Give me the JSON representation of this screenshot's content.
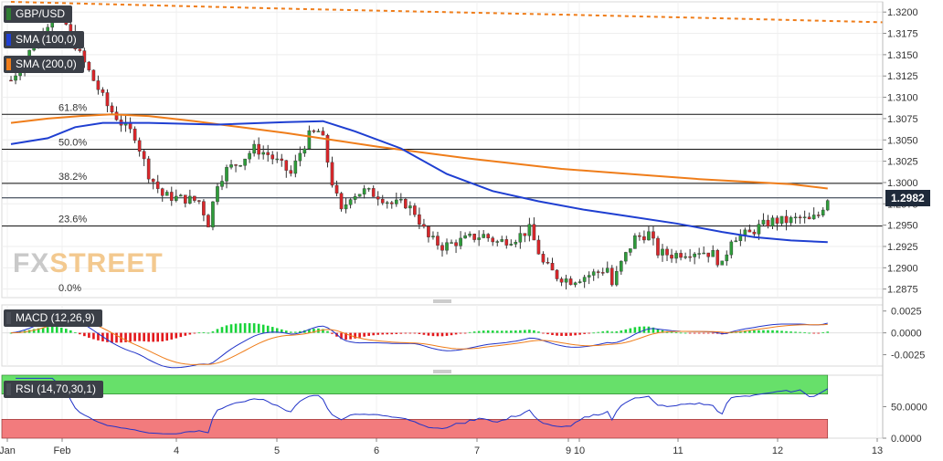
{
  "instrument": "GBP/USD",
  "watermark": {
    "left": "FX",
    "right": "STREET"
  },
  "indicators": {
    "sma100": {
      "label": "SMA (100,0)",
      "color": "#1f3fd1"
    },
    "sma200": {
      "label": "SMA (200,0)",
      "color": "#ef7d1a"
    },
    "macd": {
      "label": "MACD (12,26,9)"
    },
    "rsi": {
      "label": "RSI (14,70,30,1)"
    }
  },
  "last_price": "1.2982",
  "chart_data": [
    {
      "type": "candlestick",
      "name": "price",
      "x_ticks": [
        "Jan",
        "Feb",
        "4",
        "5",
        "6",
        "7",
        "9",
        "10",
        "11",
        "12",
        "13"
      ],
      "y_ticks": [
        "1.3200",
        "1.3175",
        "1.3150",
        "1.3125",
        "1.3100",
        "1.3075",
        "1.3050",
        "1.3025",
        "1.3000",
        "1.2975",
        "1.2950",
        "1.2925",
        "1.2900",
        "1.2875"
      ],
      "ylim": [
        1.2865,
        1.3212
      ],
      "fibonacci": [
        {
          "label": "61.8%",
          "value": 1.308
        },
        {
          "label": "50.0%",
          "value": 1.3039
        },
        {
          "label": "38.2%",
          "value": 1.2999
        },
        {
          "label": "23.6%",
          "value": 1.2949
        },
        {
          "label": "0.0%",
          "value": 1.2868
        }
      ],
      "close_path": [
        [
          0,
          1.312
        ],
        [
          3,
          1.3145
        ],
        [
          6,
          1.317
        ],
        [
          9,
          1.3195
        ],
        [
          12,
          1.3185
        ],
        [
          15,
          1.315
        ],
        [
          18,
          1.312
        ],
        [
          21,
          1.309
        ],
        [
          24,
          1.307
        ],
        [
          27,
          1.3055
        ],
        [
          30,
          1.301
        ],
        [
          33,
          1.2985
        ],
        [
          36,
          1.2982
        ],
        [
          39,
          1.298
        ],
        [
          41,
          1.2978
        ],
        [
          43,
          1.2952
        ],
        [
          45,
          1.3
        ],
        [
          47,
          1.3015
        ],
        [
          50,
          1.3025
        ],
        [
          53,
          1.304
        ],
        [
          56,
          1.3033
        ],
        [
          59,
          1.302
        ],
        [
          61,
          1.301
        ],
        [
          63,
          1.3035
        ],
        [
          65,
          1.3055
        ],
        [
          67,
          1.306
        ],
        [
          68,
          1.305
        ],
        [
          70,
          1.3
        ],
        [
          72,
          1.2965
        ],
        [
          74,
          1.2985
        ],
        [
          77,
          1.299
        ],
        [
          80,
          1.2985
        ],
        [
          83,
          1.2975
        ],
        [
          86,
          1.2975
        ],
        [
          88,
          1.2965
        ],
        [
          91,
          1.2935
        ],
        [
          94,
          1.2925
        ],
        [
          97,
          1.293
        ],
        [
          100,
          1.2935
        ],
        [
          103,
          1.2938
        ],
        [
          106,
          1.293
        ],
        [
          110,
          1.2935
        ],
        [
          113,
          1.2945
        ],
        [
          116,
          1.2905
        ],
        [
          119,
          1.289
        ],
        [
          122,
          1.2885
        ],
        [
          125,
          1.289
        ],
        [
          128,
          1.2895
        ],
        [
          130,
          1.29
        ],
        [
          131,
          1.288
        ],
        [
          133,
          1.2905
        ],
        [
          136,
          1.2935
        ],
        [
          139,
          1.294
        ],
        [
          141,
          1.2918
        ],
        [
          144,
          1.2915
        ],
        [
          147,
          1.2918
        ],
        [
          150,
          1.292
        ],
        [
          153,
          1.2916
        ],
        [
          155,
          1.2902
        ],
        [
          157,
          1.2935
        ],
        [
          159,
          1.2938
        ],
        [
          161,
          1.294
        ],
        [
          163,
          1.2948
        ],
        [
          166,
          1.2955
        ],
        [
          169,
          1.2955
        ],
        [
          172,
          1.2958
        ],
        [
          174,
          1.2955
        ],
        [
          176,
          1.2962
        ],
        [
          178,
          1.2982
        ]
      ],
      "sma100_path": [
        [
          0,
          1.3045
        ],
        [
          8,
          1.3052
        ],
        [
          14,
          1.3065
        ],
        [
          20,
          1.307
        ],
        [
          30,
          1.307
        ],
        [
          45,
          1.3068
        ],
        [
          60,
          1.3071
        ],
        [
          68,
          1.3072
        ],
        [
          75,
          1.306
        ],
        [
          85,
          1.304
        ],
        [
          95,
          1.301
        ],
        [
          105,
          1.299
        ],
        [
          115,
          1.2978
        ],
        [
          125,
          1.2968
        ],
        [
          135,
          1.296
        ],
        [
          145,
          1.2952
        ],
        [
          155,
          1.2942
        ],
        [
          162,
          1.2936
        ],
        [
          170,
          1.2932
        ],
        [
          178,
          1.293
        ]
      ],
      "sma200_path": [
        [
          0,
          1.307
        ],
        [
          8,
          1.3075
        ],
        [
          15,
          1.3078
        ],
        [
          22,
          1.308
        ],
        [
          30,
          1.3078
        ],
        [
          40,
          1.3072
        ],
        [
          50,
          1.3065
        ],
        [
          60,
          1.3058
        ],
        [
          70,
          1.305
        ],
        [
          80,
          1.3042
        ],
        [
          90,
          1.3035
        ],
        [
          100,
          1.3028
        ],
        [
          110,
          1.3022
        ],
        [
          120,
          1.3016
        ],
        [
          130,
          1.3012
        ],
        [
          140,
          1.3008
        ],
        [
          150,
          1.3004
        ],
        [
          160,
          1.3001
        ],
        [
          170,
          1.2998
        ],
        [
          178,
          1.2993
        ]
      ],
      "sma200_upper_path": [
        [
          0,
          1.3212
        ],
        [
          60,
          1.3204
        ],
        [
          120,
          1.3197
        ],
        [
          160,
          1.3192
        ],
        [
          190,
          1.3188
        ]
      ],
      "x_range": [
        -2,
        190
      ]
    },
    {
      "type": "macd",
      "y_ticks": [
        "0.0025",
        "0.0000",
        "-0.0025"
      ],
      "ylim": [
        -0.0038,
        0.0032
      ]
    },
    {
      "type": "rsi",
      "y_ticks": [
        "50.0000",
        "0.0000"
      ],
      "ylim": [
        0,
        100
      ],
      "overbought": 70,
      "oversold": 30
    }
  ]
}
